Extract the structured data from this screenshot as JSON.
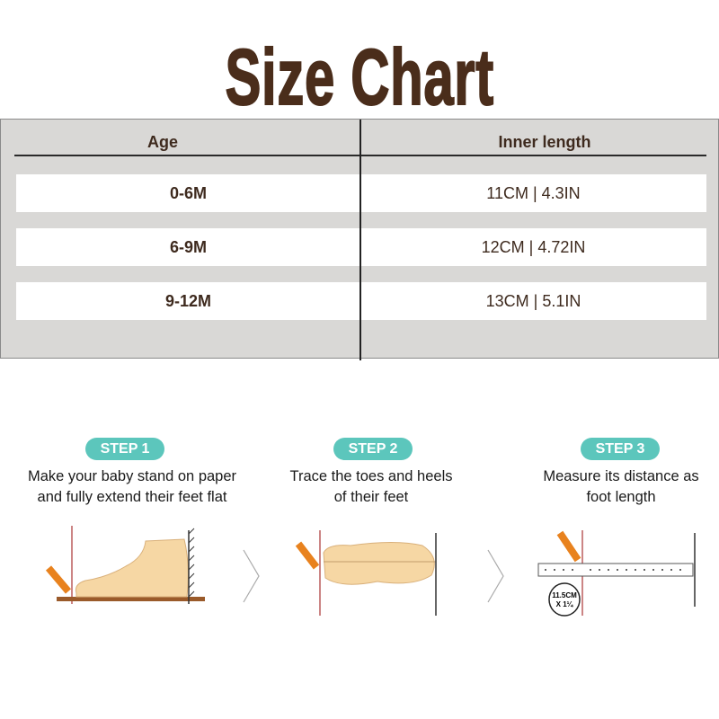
{
  "title": "Size Chart",
  "table": {
    "headers": [
      "Age",
      "Inner length"
    ],
    "rows": [
      {
        "age": "0-6M",
        "length": "11CM | 4.3IN"
      },
      {
        "age": "6-9M",
        "length": "12CM | 4.72IN"
      },
      {
        "age": "9-12M",
        "length": "13CM | 5.1IN"
      }
    ]
  },
  "steps": [
    {
      "badge": "STEP 1",
      "line1": "Make your baby stand on paper",
      "line2": "and fully extend their feet flat"
    },
    {
      "badge": "STEP 2",
      "line1": "Trace the toes and heels",
      "line2": "of their feet"
    },
    {
      "badge": "STEP 3",
      "line1": "Measure its distance as",
      "line2": "foot length"
    }
  ],
  "ruler_label": {
    "line1": "11.5CM",
    "line2": "X 1¼"
  },
  "colors": {
    "title": "#4a2d1b",
    "badge": "#5cc6bc",
    "table_bg": "#d9d8d6",
    "foot": "#f6d7a4",
    "pencil": "#e8821e"
  }
}
